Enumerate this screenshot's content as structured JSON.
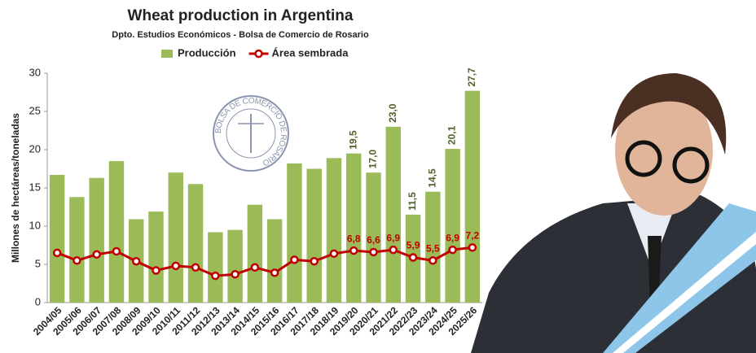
{
  "chart_data": {
    "type": "bar",
    "title": "Wheat production in Argentina",
    "subtitle": "Dpto. Estudios Económicos - Bolsa de Comercio de Rosario",
    "y_label": "Millones de hectáreas/toneladas",
    "watermark": "BOLSA DE COMERCIO DE ROSARIO",
    "categories": [
      "2004/05",
      "2005/06",
      "2006/07",
      "2007/08",
      "2008/09",
      "2009/10",
      "2010/11",
      "2011/12",
      "2012/13",
      "2013/14",
      "2014/15",
      "2015/16",
      "2016/17",
      "2017/18",
      "2018/19",
      "2019/20",
      "2020/21",
      "2021/22",
      "2022/23",
      "2023/24",
      "2024/25",
      "2025/26"
    ],
    "series": [
      {
        "name": "Producción",
        "type": "bar",
        "color": "#9bbb59",
        "label_color": "#4f6228",
        "values": [
          16.7,
          13.8,
          16.3,
          18.5,
          10.9,
          11.9,
          17.0,
          15.5,
          9.2,
          9.5,
          12.8,
          10.9,
          18.2,
          17.5,
          18.9,
          19.5,
          17.0,
          23.0,
          11.5,
          14.5,
          20.1,
          27.7
        ],
        "value_labels": [
          null,
          null,
          null,
          null,
          null,
          null,
          null,
          null,
          null,
          null,
          null,
          null,
          null,
          null,
          null,
          "19,5",
          "17,0",
          "23,0",
          "11,5",
          "14,5",
          "20,1",
          "27,7"
        ]
      },
      {
        "name": "Área sembrada",
        "type": "line",
        "color": "#c00000",
        "label_color": "#c00000",
        "values": [
          6.5,
          5.5,
          6.3,
          6.7,
          5.4,
          4.2,
          4.8,
          4.6,
          3.5,
          3.7,
          4.6,
          3.9,
          5.6,
          5.4,
          6.4,
          6.8,
          6.6,
          6.9,
          5.9,
          5.5,
          6.9,
          7.2
        ],
        "value_labels": [
          null,
          null,
          null,
          null,
          null,
          null,
          null,
          null,
          null,
          null,
          null,
          null,
          null,
          null,
          null,
          "6,8",
          "6,6",
          "6,9",
          "5,9",
          "5,5",
          "6,9",
          "7,2"
        ]
      }
    ],
    "ylim": [
      0,
      30
    ],
    "yticks": [
      0,
      5,
      10,
      15,
      20,
      25,
      30
    ],
    "grid": false
  }
}
